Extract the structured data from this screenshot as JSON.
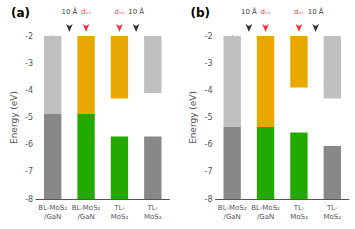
{
  "chart_data": [
    {
      "type": "bar",
      "title": "(a)",
      "categories": [
        "BL-MoS₂\n/GaN",
        "BL-MoS₂\n/GaN",
        "TL-\nMoS₂",
        "TL-\nMoS₂"
      ],
      "series": [
        {
          "values": [
            [
              -8.0,
              -4.87
            ],
            [
              -8.0,
              -4.87
            ],
            [
              -8.0,
              -5.7
            ],
            [
              -8.0,
              -5.7
            ]
          ],
          "colors": [
            "#888888",
            "#22aa00",
            "#22aa00",
            "#888888"
          ]
        },
        {
          "values": [
            [
              -4.87,
              -2.0
            ],
            [
              -4.87,
              -2.0
            ],
            [
              -4.3,
              -2.0
            ],
            [
              -4.1,
              -2.0
            ]
          ],
          "colors": [
            "#c0c0c0",
            "#e8a800",
            "#e8a800",
            "#c0c0c0"
          ]
        }
      ],
      "ylabel": "Energy (eV)",
      "ylim": [
        -8.0,
        -2.0
      ],
      "yticks": [
        -8,
        -7,
        -6,
        -5,
        -4,
        -3,
        -2
      ],
      "grid": false,
      "annotations": [
        {
          "x": 0.5,
          "y": -2.0,
          "text": "10 Å",
          "color": "black"
        },
        {
          "x": 1.0,
          "y": -2.0,
          "text": "dᵥₛ",
          "color": "red"
        },
        {
          "x": 2.0,
          "y": -2.0,
          "text": "dᵥₛ",
          "color": "red"
        },
        {
          "x": 2.5,
          "y": -2.0,
          "text": "10 Å",
          "color": "black"
        }
      ]
    },
    {
      "type": "bar",
      "title": "(b)",
      "categories": [
        "BL-MoS₂\n/GaN",
        "BL-MoS₂\n/GaN",
        "TL-\nMoS₂",
        "TL-\nMoS₂"
      ],
      "series": [
        {
          "values": [
            [
              -8.0,
              -5.35
            ],
            [
              -8.0,
              -5.35
            ],
            [
              -8.0,
              -5.55
            ],
            [
              -8.0,
              -6.05
            ]
          ],
          "colors": [
            "#888888",
            "#22aa00",
            "#22aa00",
            "#888888"
          ]
        },
        {
          "values": [
            [
              -5.35,
              -2.0
            ],
            [
              -5.35,
              -2.0
            ],
            [
              -3.9,
              -2.0
            ],
            [
              -4.3,
              -2.0
            ]
          ],
          "colors": [
            "#c0c0c0",
            "#e8a800",
            "#e8a800",
            "#c0c0c0"
          ]
        }
      ],
      "ylabel": "Energy (eV)",
      "ylim": [
        -8.0,
        -2.0
      ],
      "yticks": [
        -8,
        -7,
        -6,
        -5,
        -4,
        -3,
        -2
      ],
      "grid": false,
      "annotations": [
        {
          "x": 0.5,
          "y": -2.0,
          "text": "10 Å",
          "color": "black"
        },
        {
          "x": 1.0,
          "y": -2.0,
          "text": "dᵥₛ",
          "color": "red"
        },
        {
          "x": 2.0,
          "y": -2.0,
          "text": "dᵥₛ",
          "color": "red"
        },
        {
          "x": 2.5,
          "y": -2.0,
          "text": "10 Å",
          "color": "black"
        }
      ]
    }
  ]
}
